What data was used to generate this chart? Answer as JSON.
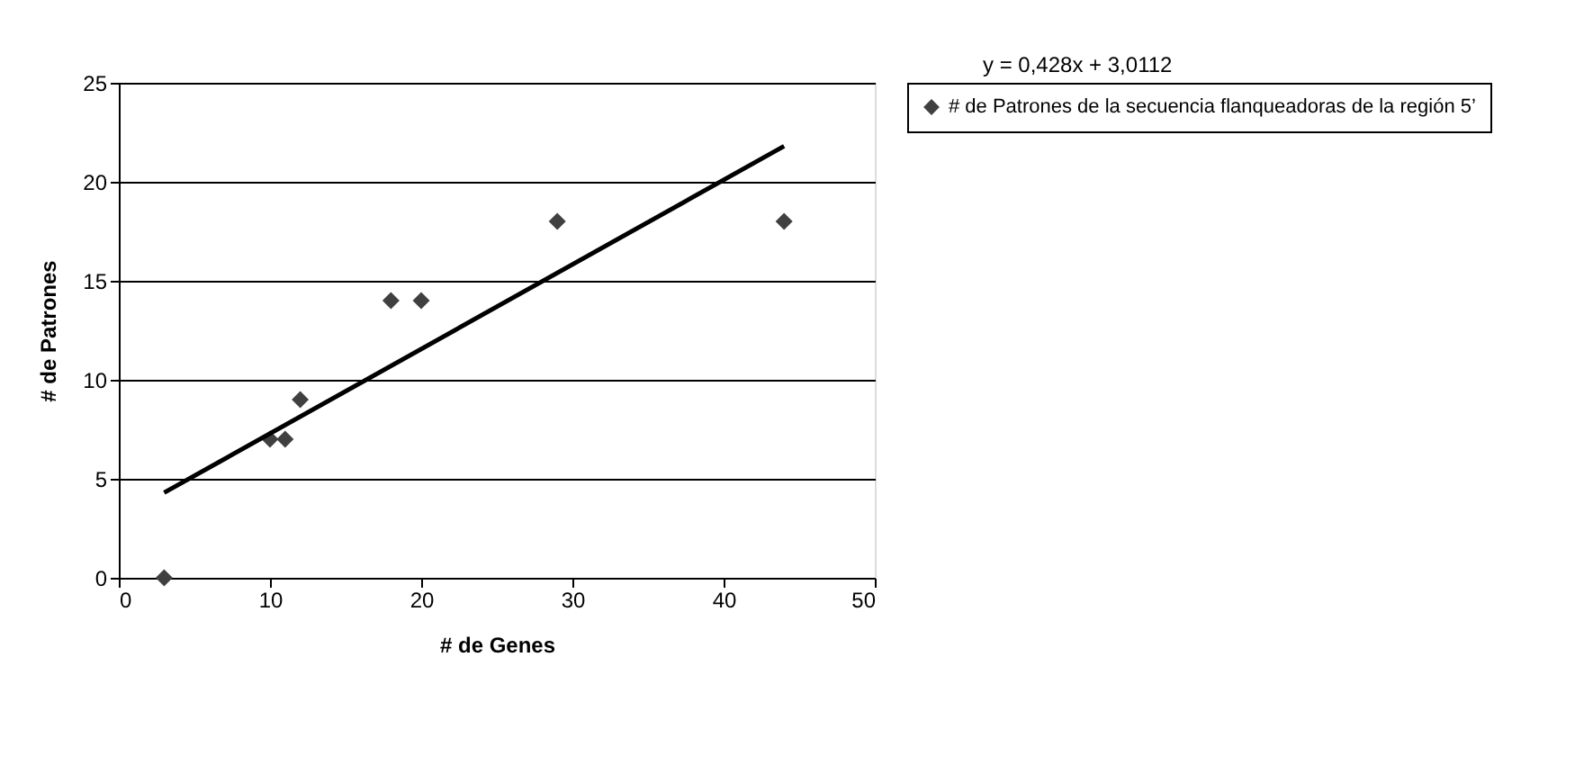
{
  "chart_data": {
    "type": "scatter",
    "xlabel": "# de Genes",
    "ylabel": "# de Patrones",
    "x": [
      3,
      10,
      11,
      12,
      18,
      20,
      29,
      44
    ],
    "series": [
      {
        "name": "# de Patrones de la secuencia flanqueadoras de la región 5’",
        "color": "#404040",
        "values": [
          0,
          7,
          7,
          9,
          14,
          14,
          18,
          18
        ],
        "marker": "diamond"
      },
      {
        "type": "line",
        "color": "#000000",
        "x": [
          3,
          44
        ],
        "values": [
          4.3,
          21.8
        ]
      }
    ],
    "xlim": [
      0,
      50
    ],
    "xticks": [
      0,
      10,
      20,
      30,
      40,
      50
    ],
    "ylim": [
      0,
      25
    ],
    "yticks": [
      0,
      5,
      10,
      15,
      20,
      25
    ],
    "grid": "y",
    "legend": "right",
    "annotations": [
      "y = 0,428x + 3,0112"
    ]
  }
}
